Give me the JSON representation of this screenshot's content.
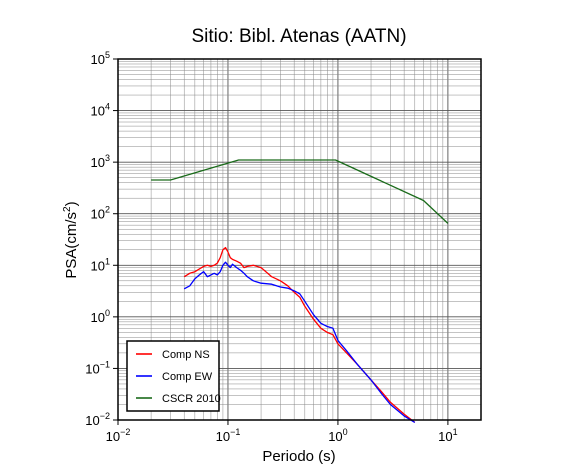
{
  "chart_data": {
    "type": "line",
    "title": "Sitio: Bibl. Atenas (AATN)",
    "xlabel": "Periodo (s)",
    "ylabel": "PSA(cm/s2)",
    "xscale": "log",
    "yscale": "log",
    "xlim": [
      0.01,
      20
    ],
    "ylim": [
      0.01,
      100000
    ],
    "x_ticks": [
      {
        "base": "10",
        "exp": "−2"
      },
      {
        "base": "10",
        "exp": "−1"
      },
      {
        "base": "10",
        "exp": "0"
      },
      {
        "base": "10",
        "exp": "1"
      }
    ],
    "y_ticks": [
      {
        "base": "10",
        "exp": "−2"
      },
      {
        "base": "10",
        "exp": "−1"
      },
      {
        "base": "10",
        "exp": "0"
      },
      {
        "base": "10",
        "exp": "1"
      },
      {
        "base": "10",
        "exp": "2"
      },
      {
        "base": "10",
        "exp": "3"
      },
      {
        "base": "10",
        "exp": "4"
      },
      {
        "base": "10",
        "exp": "5"
      }
    ],
    "grid": true,
    "legend_position": "bottom-left",
    "series": [
      {
        "name": "Comp NS",
        "color": "#ff0000",
        "x": [
          0.04,
          0.045,
          0.05,
          0.055,
          0.06,
          0.065,
          0.07,
          0.075,
          0.08,
          0.085,
          0.09,
          0.095,
          0.1,
          0.105,
          0.11,
          0.12,
          0.13,
          0.14,
          0.15,
          0.17,
          0.2,
          0.25,
          0.3,
          0.35,
          0.4,
          0.45,
          0.5,
          0.6,
          0.7,
          0.8,
          0.9,
          1.0,
          1.2,
          1.5,
          2.0,
          2.5,
          3.0,
          4.0,
          5.0
        ],
        "y": [
          6.0,
          7.0,
          7.5,
          8.5,
          9.5,
          10.0,
          9.5,
          10.0,
          11.0,
          14.0,
          20.0,
          22.0,
          18.0,
          14.0,
          13.0,
          12.0,
          11.0,
          9.0,
          9.5,
          10.0,
          9.0,
          6.0,
          5.0,
          4.0,
          3.0,
          2.4,
          1.6,
          0.9,
          0.6,
          0.5,
          0.45,
          0.3,
          0.2,
          0.12,
          0.06,
          0.035,
          0.022,
          0.013,
          0.009
        ]
      },
      {
        "name": "Comp EW",
        "color": "#0000ff",
        "x": [
          0.04,
          0.045,
          0.05,
          0.055,
          0.06,
          0.065,
          0.07,
          0.075,
          0.08,
          0.085,
          0.09,
          0.095,
          0.1,
          0.105,
          0.11,
          0.12,
          0.13,
          0.14,
          0.15,
          0.17,
          0.2,
          0.25,
          0.3,
          0.35,
          0.4,
          0.45,
          0.5,
          0.6,
          0.7,
          0.8,
          0.9,
          1.0,
          1.2,
          1.5,
          2.0,
          2.5,
          3.0,
          4.0,
          5.0
        ],
        "y": [
          3.5,
          4.0,
          5.5,
          6.5,
          7.5,
          6.0,
          6.5,
          7.0,
          6.5,
          7.5,
          10.0,
          11.5,
          10.0,
          9.0,
          10.5,
          9.0,
          8.0,
          7.0,
          6.0,
          5.0,
          4.5,
          4.3,
          3.8,
          3.6,
          3.2,
          2.8,
          2.0,
          1.1,
          0.75,
          0.65,
          0.6,
          0.35,
          0.22,
          0.12,
          0.06,
          0.032,
          0.02,
          0.012,
          0.009
        ]
      },
      {
        "name": "CSCR 2010",
        "color": "#1a6b1a",
        "x": [
          0.02,
          0.03,
          0.125,
          0.95,
          6.0,
          10.0
        ],
        "y": [
          450,
          450,
          1100,
          1100,
          180,
          65
        ]
      }
    ]
  }
}
